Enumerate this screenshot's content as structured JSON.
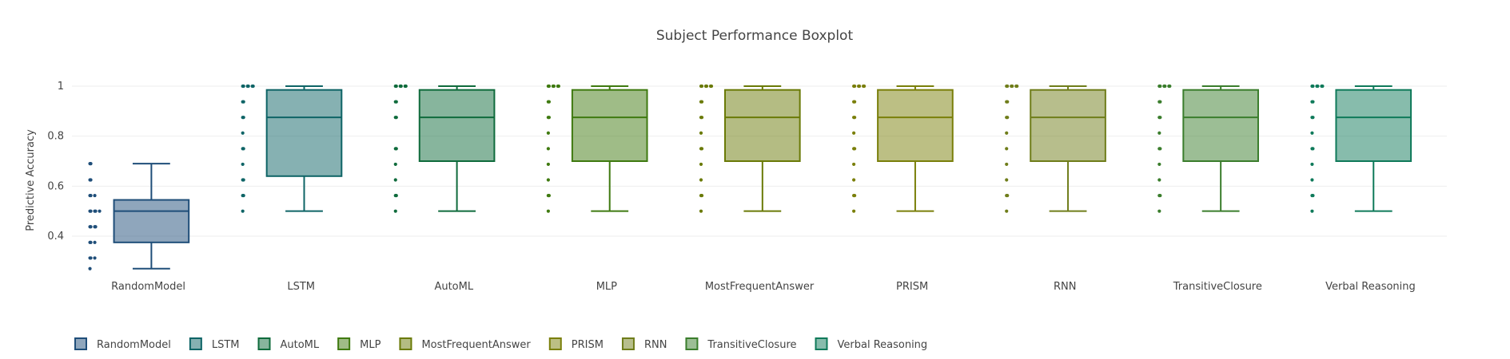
{
  "chart_data": {
    "type": "box",
    "title": "Subject Performance Boxplot",
    "xlabel": "",
    "ylabel": "Predictive Accuracy",
    "ylim": [
      0.25,
      1.0
    ],
    "yticks": [
      0.4,
      0.6,
      0.8,
      1
    ],
    "ytick_labels": [
      "0.4",
      "0.6",
      "0.8",
      "1"
    ],
    "grid": true,
    "legend_position": "bottom-left",
    "boxpoints": "all",
    "series": [
      {
        "name": "RandomModel",
        "color": "#1f4e79",
        "stats": {
          "min": 0.27,
          "q1": 0.375,
          "median": 0.5,
          "q3": 0.545,
          "max": 0.69
        },
        "points": [
          0.69,
          0.69,
          0.625,
          0.625,
          0.5625,
          0.5625,
          0.5625,
          0.5,
          0.5,
          0.5,
          0.5,
          0.5,
          0.4375,
          0.4375,
          0.4375,
          0.4375,
          0.375,
          0.375,
          0.375,
          0.3125,
          0.3125,
          0.3125,
          0.27
        ]
      },
      {
        "name": "LSTM",
        "color": "#0e6466",
        "stats": {
          "min": 0.5,
          "q1": 0.64,
          "median": 0.875,
          "q3": 0.985,
          "max": 1.0
        },
        "points": [
          1,
          1,
          1,
          1,
          1,
          1,
          0.9375,
          0.9375,
          0.875,
          0.875,
          0.8125,
          0.75,
          0.75,
          0.6875,
          0.625,
          0.625,
          0.5625,
          0.5625,
          0.5
        ]
      },
      {
        "name": "AutoML",
        "color": "#0f6b3c",
        "stats": {
          "min": 0.5,
          "q1": 0.7,
          "median": 0.875,
          "q3": 0.985,
          "max": 1.0
        },
        "points": [
          1,
          1,
          1,
          1,
          1,
          1,
          0.9375,
          0.9375,
          0.875,
          0.875,
          0.75,
          0.75,
          0.6875,
          0.625,
          0.5625,
          0.5625,
          0.5
        ]
      },
      {
        "name": "MLP",
        "color": "#3f7a10",
        "stats": {
          "min": 0.5,
          "q1": 0.7,
          "median": 0.875,
          "q3": 0.985,
          "max": 1.0
        },
        "points": [
          1,
          1,
          1,
          1,
          1,
          1,
          0.9375,
          0.9375,
          0.875,
          0.875,
          0.8125,
          0.75,
          0.6875,
          0.625,
          0.5625,
          0.5625,
          0.5
        ]
      },
      {
        "name": "MostFrequentAnswer",
        "color": "#6a7a07",
        "stats": {
          "min": 0.5,
          "q1": 0.7,
          "median": 0.875,
          "q3": 0.985,
          "max": 1.0
        },
        "points": [
          1,
          1,
          1,
          1,
          1,
          1,
          0.9375,
          0.9375,
          0.875,
          0.875,
          0.8125,
          0.75,
          0.75,
          0.6875,
          0.625,
          0.5625,
          0.5625,
          0.5
        ]
      },
      {
        "name": "PRISM",
        "color": "#7a7f0a",
        "stats": {
          "min": 0.5,
          "q1": 0.7,
          "median": 0.875,
          "q3": 0.985,
          "max": 1.0
        },
        "points": [
          1,
          1,
          1,
          1,
          1,
          1,
          0.9375,
          0.9375,
          0.875,
          0.875,
          0.8125,
          0.75,
          0.75,
          0.6875,
          0.625,
          0.5625,
          0.5625,
          0.5
        ]
      },
      {
        "name": "RNN",
        "color": "#6f7d1a",
        "stats": {
          "min": 0.5,
          "q1": 0.7,
          "median": 0.875,
          "q3": 0.985,
          "max": 1.0
        },
        "points": [
          1,
          1,
          1,
          1,
          1,
          1,
          0.9375,
          0.9375,
          0.875,
          0.875,
          0.8125,
          0.75,
          0.6875,
          0.625,
          0.5625,
          0.5625,
          0.5
        ]
      },
      {
        "name": "TransitiveClosure",
        "color": "#3a7d2c",
        "stats": {
          "min": 0.5,
          "q1": 0.7,
          "median": 0.875,
          "q3": 0.985,
          "max": 1.0
        },
        "points": [
          1,
          1,
          1,
          1,
          1,
          1,
          0.9375,
          0.9375,
          0.875,
          0.875,
          0.8125,
          0.75,
          0.75,
          0.6875,
          0.625,
          0.5625,
          0.5625,
          0.5
        ]
      },
      {
        "name": "Verbal Reasoning",
        "color": "#0f7a5a",
        "stats": {
          "min": 0.5,
          "q1": 0.7,
          "median": 0.875,
          "q3": 0.985,
          "max": 1.0
        },
        "points": [
          1,
          1,
          1,
          1,
          1,
          1,
          0.9375,
          0.9375,
          0.875,
          0.875,
          0.8125,
          0.75,
          0.75,
          0.6875,
          0.625,
          0.5625,
          0.5625,
          0.5
        ]
      }
    ]
  }
}
